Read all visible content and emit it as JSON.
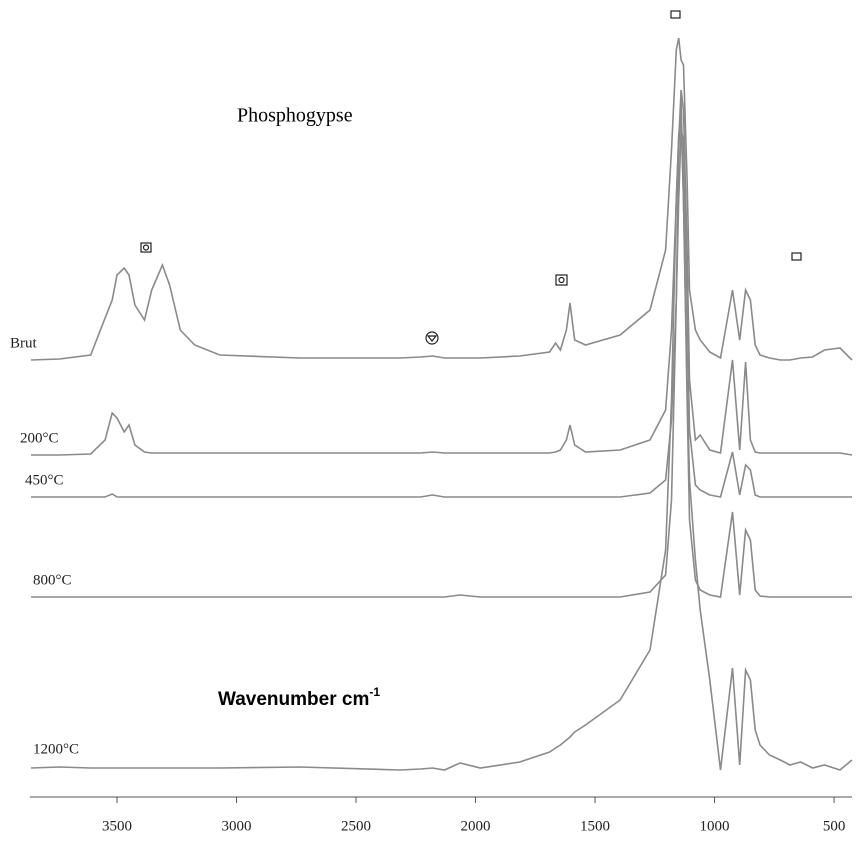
{
  "chart_data": {
    "type": "line",
    "title": "Phosphogypse",
    "xlabel": "Wavenumber cm",
    "xlabel_superscript": "-1",
    "xlim": [
      3864,
      425
    ],
    "xticks": [
      3500,
      3000,
      2500,
      2000,
      1500,
      1000,
      500
    ],
    "ylim": [
      0,
      800
    ],
    "x": [
      3860,
      3740,
      3610,
      3550,
      3520,
      3500,
      3470,
      3450,
      3425,
      3385,
      3355,
      3310,
      3280,
      3235,
      3175,
      3070,
      2735,
      2315,
      2230,
      2180,
      2130,
      2065,
      1980,
      1815,
      1690,
      1665,
      1645,
      1620,
      1605,
      1585,
      1540,
      1395,
      1270,
      1205,
      1180,
      1160,
      1150,
      1140,
      1130,
      1115,
      1105,
      1080,
      1060,
      1020,
      975,
      925,
      895,
      870,
      850,
      830,
      810,
      770,
      725,
      685,
      640,
      590,
      540,
      475,
      425
    ],
    "series": [
      {
        "name": "Brut",
        "color": "#8a8a8a",
        "values": [
          440,
          441,
          445,
          482,
          500,
          525,
          532,
          525,
          495,
          480,
          510,
          535,
          515,
          470,
          455,
          445,
          442,
          442,
          443,
          444,
          442,
          442,
          442,
          444,
          448,
          457,
          450,
          470,
          497,
          460,
          455,
          465,
          490,
          550,
          650,
          750,
          762,
          740,
          735,
          620,
          510,
          470,
          460,
          448,
          442,
          510,
          460,
          510,
          500,
          455,
          445,
          442,
          440,
          440,
          442,
          443,
          450,
          452,
          440
        ]
      },
      {
        "name": "200°C",
        "color": "#8a8a8a",
        "values": [
          345,
          345,
          346,
          360,
          387,
          382,
          368,
          375,
          355,
          348,
          347,
          347,
          347,
          347,
          347,
          347,
          347,
          347,
          347,
          348,
          347,
          347,
          347,
          347,
          347,
          348,
          350,
          360,
          375,
          355,
          348,
          350,
          360,
          390,
          470,
          600,
          660,
          710,
          690,
          550,
          420,
          360,
          365,
          350,
          347,
          440,
          350,
          438,
          360,
          348,
          347,
          347,
          347,
          347,
          347,
          347,
          347,
          347,
          345
        ]
      },
      {
        "name": "450°C",
        "color": "#8a8a8a",
        "values": [
          303,
          303,
          303,
          303,
          306,
          303,
          303,
          303,
          303,
          303,
          303,
          303,
          303,
          303,
          303,
          303,
          303,
          303,
          303,
          305,
          303,
          303,
          303,
          303,
          303,
          303,
          303,
          303,
          303,
          303,
          303,
          303,
          307,
          320,
          380,
          500,
          600,
          670,
          660,
          500,
          370,
          315,
          310,
          305,
          303,
          348,
          305,
          335,
          330,
          305,
          303,
          303,
          303,
          303,
          303,
          303,
          303,
          303,
          303
        ]
      },
      {
        "name": "800°C",
        "color": "#8a8a8a",
        "values": [
          203,
          203,
          203,
          203,
          203,
          203,
          203,
          203,
          203,
          203,
          203,
          203,
          203,
          203,
          203,
          203,
          203,
          203,
          203,
          203,
          203,
          205,
          203,
          203,
          203,
          203,
          203,
          203,
          203,
          203,
          203,
          203,
          208,
          225,
          300,
          500,
          650,
          700,
          600,
          400,
          280,
          220,
          210,
          205,
          203,
          288,
          205,
          270,
          260,
          210,
          204,
          203,
          203,
          203,
          203,
          203,
          203,
          203,
          203
        ]
      },
      {
        "name": "1200°C",
        "color": "#8a8a8a",
        "values": [
          32,
          33,
          32,
          32,
          32,
          32,
          32,
          32,
          32,
          32,
          32,
          32,
          32,
          32,
          32,
          32,
          33,
          30,
          31,
          32,
          30,
          37,
          32,
          38,
          48,
          52,
          55,
          60,
          63,
          68,
          75,
          100,
          150,
          250,
          400,
          600,
          665,
          680,
          600,
          420,
          320,
          240,
          190,
          120,
          30,
          132,
          35,
          130,
          120,
          70,
          55,
          45,
          40,
          35,
          38,
          32,
          35,
          30,
          40
        ]
      }
    ]
  }
}
